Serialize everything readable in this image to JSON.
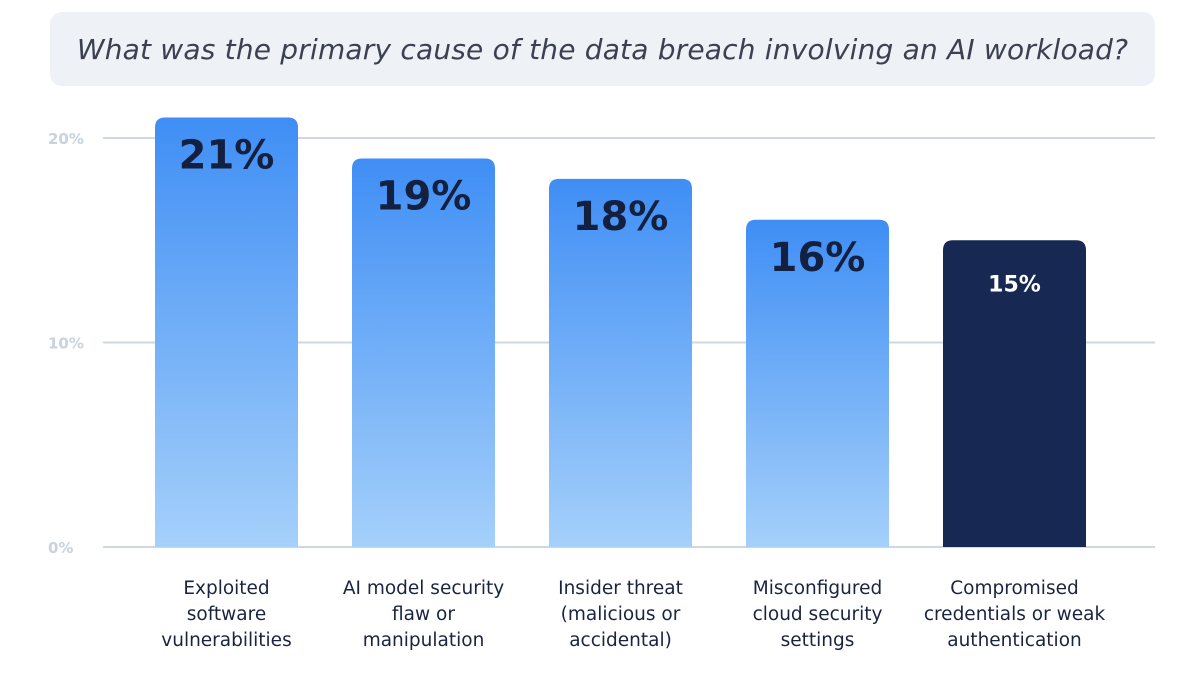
{
  "chart_data": {
    "type": "bar",
    "title": "What was the primary cause of the data breach involving an AI workload?",
    "categories": [
      [
        "Exploited",
        "software",
        "vulnerabilities"
      ],
      [
        "AI model security",
        "flaw or",
        "manipulation"
      ],
      [
        "Insider threat",
        "(malicious or",
        "accidental)"
      ],
      [
        "Misconfigured",
        "cloud security",
        "settings"
      ],
      [
        "Compromised",
        "credentials or weak",
        "authentication"
      ]
    ],
    "values": [
      21,
      19,
      18,
      16,
      15
    ],
    "value_labels": [
      "21%",
      "19%",
      "18%",
      "16%",
      "15%"
    ],
    "ylim": [
      0,
      20
    ],
    "yticks": [
      0,
      10,
      20
    ],
    "ytick_labels": [
      "0%",
      "10%",
      "20%"
    ],
    "grid": true,
    "colors": {
      "gradient_top": "#3f8ef5",
      "gradient_bottom": "#a5d0fa",
      "highlight": "#172953",
      "value_text_dark": "#13203f",
      "value_text_light": "#ffffff",
      "grid": "#cfd7e3"
    },
    "highlight_index": 4
  }
}
